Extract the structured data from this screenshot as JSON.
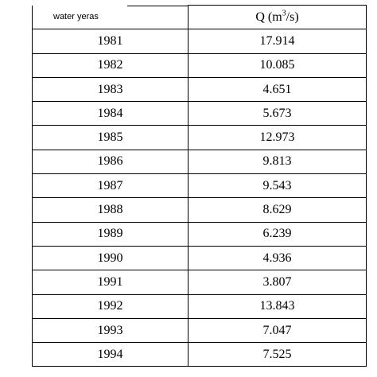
{
  "table": {
    "headers": {
      "year": "water yeras",
      "q_prefix": "Q (m",
      "q_exp": "3",
      "q_suffix": "/s)"
    },
    "rows": [
      {
        "year": "1981",
        "q": "17.914"
      },
      {
        "year": "1982",
        "q": "10.085"
      },
      {
        "year": "1983",
        "q": "4.651"
      },
      {
        "year": "1984",
        "q": "5.673"
      },
      {
        "year": "1985",
        "q": "12.973"
      },
      {
        "year": "1986",
        "q": "9.813"
      },
      {
        "year": "1987",
        "q": "9.543"
      },
      {
        "year": "1988",
        "q": "8.629"
      },
      {
        "year": "1989",
        "q": "6.239"
      },
      {
        "year": "1990",
        "q": "4.936"
      },
      {
        "year": "1991",
        "q": "3.807"
      },
      {
        "year": "1992",
        "q": "13.843"
      },
      {
        "year": "1993",
        "q": "7.047"
      },
      {
        "year": "1994",
        "q": "7.525"
      }
    ]
  }
}
